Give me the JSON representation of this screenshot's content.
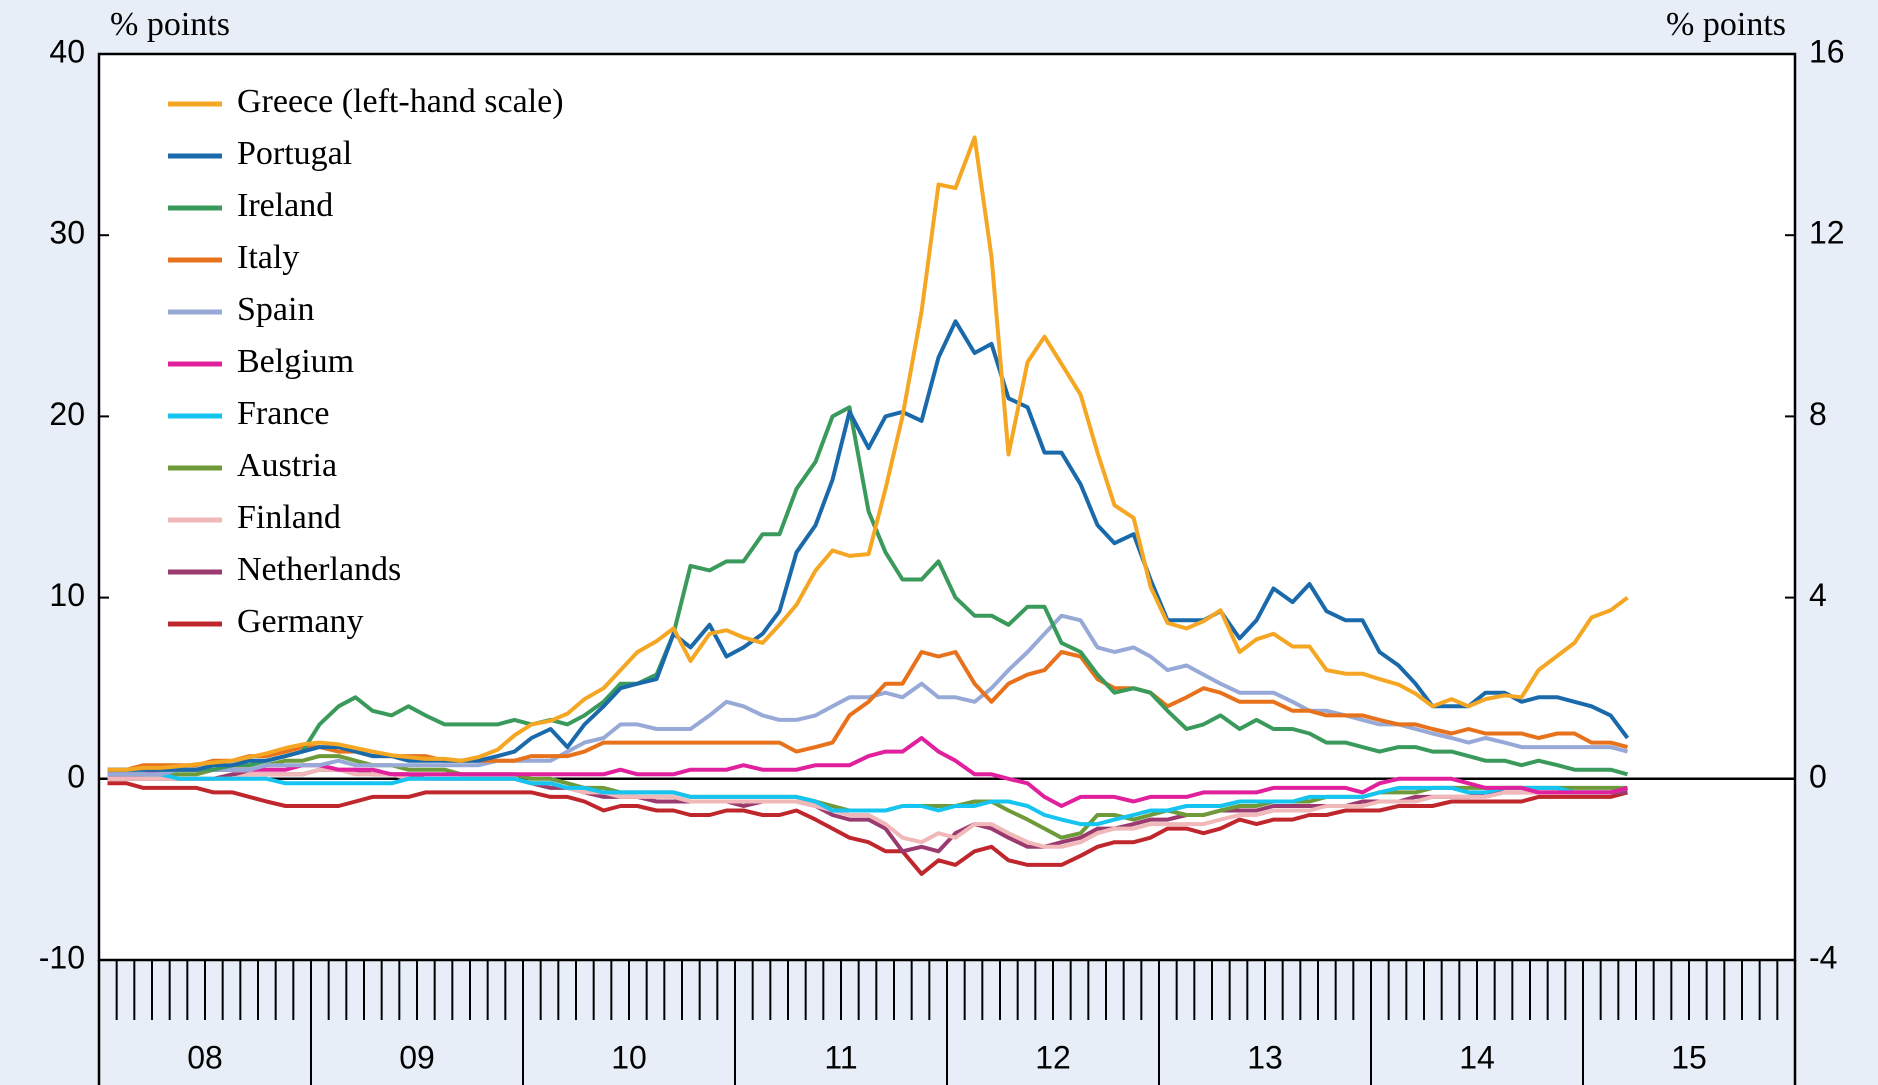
{
  "chart_data": {
    "type": "line",
    "ylabel": "% points",
    "y2label": "% points",
    "xlim": [
      2008,
      2016
    ],
    "xticks": [
      {
        "value": 2008.5,
        "label": "08"
      },
      {
        "value": 2009.5,
        "label": "09"
      },
      {
        "value": 2010.5,
        "label": "10"
      },
      {
        "value": 2011.5,
        "label": "11"
      },
      {
        "value": 2012.5,
        "label": "12"
      },
      {
        "value": 2013.5,
        "label": "13"
      },
      {
        "value": 2014.5,
        "label": "14"
      },
      {
        "value": 2015.5,
        "label": "15"
      }
    ],
    "ylim": [
      -10,
      40
    ],
    "yticks": [
      -10,
      0,
      10,
      20,
      30,
      40
    ],
    "y2lim": [
      -4,
      16
    ],
    "y2ticks": [
      -4,
      0,
      4,
      8,
      12,
      16
    ],
    "legend": "upper left",
    "grid": false,
    "x": [
      2008.04,
      2008.13,
      2008.21,
      2008.29,
      2008.38,
      2008.46,
      2008.54,
      2008.63,
      2008.71,
      2008.79,
      2008.88,
      2008.96,
      2009.04,
      2009.13,
      2009.21,
      2009.29,
      2009.38,
      2009.46,
      2009.54,
      2009.63,
      2009.71,
      2009.79,
      2009.88,
      2009.96,
      2010.04,
      2010.13,
      2010.21,
      2010.29,
      2010.38,
      2010.46,
      2010.54,
      2010.63,
      2010.71,
      2010.79,
      2010.88,
      2010.96,
      2011.04,
      2011.13,
      2011.21,
      2011.29,
      2011.38,
      2011.46,
      2011.54,
      2011.63,
      2011.71,
      2011.79,
      2011.88,
      2011.96,
      2012.04,
      2012.13,
      2012.21,
      2012.29,
      2012.38,
      2012.46,
      2012.54,
      2012.63,
      2012.71,
      2012.79,
      2012.88,
      2012.96,
      2013.04,
      2013.13,
      2013.21,
      2013.29,
      2013.38,
      2013.46,
      2013.54,
      2013.63,
      2013.71,
      2013.79,
      2013.88,
      2013.96,
      2014.04,
      2014.13,
      2014.21,
      2014.29,
      2014.38,
      2014.46,
      2014.54,
      2014.63,
      2014.71,
      2014.79,
      2014.88,
      2014.96,
      2015.04,
      2015.13,
      2015.21
    ],
    "series": [
      {
        "name": "Greece (left-hand scale)",
        "color": "#f5a623",
        "axis": "y",
        "values": [
          0.5,
          0.5,
          0.6,
          0.6,
          0.7,
          0.8,
          0.9,
          1.0,
          1.2,
          1.4,
          1.7,
          1.9,
          2.0,
          1.9,
          1.7,
          1.5,
          1.3,
          1.2,
          1.1,
          1.1,
          1.0,
          1.2,
          1.6,
          2.4,
          3.0,
          3.2,
          3.6,
          4.4,
          5.0,
          6.0,
          7.0,
          7.6,
          8.3,
          6.5,
          8.0,
          8.2,
          7.8,
          7.5,
          8.5,
          9.6,
          11.5,
          12.6,
          12.3,
          12.4,
          16,
          20,
          25.8,
          32.8,
          32.6,
          35.4,
          28.8,
          17.9,
          23,
          24.4,
          22.9,
          21.2,
          18,
          15.1,
          14.4,
          10.6,
          8.6,
          8.3,
          8.7,
          9.3,
          7.0,
          7.7,
          8.0,
          7.3,
          7.3,
          6.0,
          5.8,
          5.8,
          5.5,
          5.2,
          4.7,
          4.0,
          4.4,
          4.0,
          4.4,
          4.6,
          4.5,
          6.0,
          6.8,
          7.5,
          8.9,
          9.3,
          10.0
        ]
      },
      {
        "name": "Portugal",
        "color": "#1a6aab",
        "axis": "y2",
        "values": [
          0.2,
          0.2,
          0.2,
          0.2,
          0.2,
          0.2,
          0.3,
          0.3,
          0.4,
          0.4,
          0.5,
          0.6,
          0.7,
          0.7,
          0.6,
          0.5,
          0.5,
          0.4,
          0.4,
          0.4,
          0.4,
          0.4,
          0.5,
          0.6,
          0.9,
          1.1,
          0.7,
          1.2,
          1.6,
          2.0,
          2.1,
          2.2,
          3.2,
          2.9,
          3.4,
          2.7,
          2.9,
          3.2,
          3.7,
          5.0,
          5.6,
          6.6,
          8.1,
          7.3,
          8.0,
          8.1,
          7.9,
          9.3,
          10.1,
          9.4,
          9.6,
          8.4,
          8.2,
          7.2,
          7.2,
          6.5,
          5.6,
          5.2,
          5.4,
          4.4,
          3.5,
          3.5,
          3.5,
          3.7,
          3.1,
          3.5,
          4.2,
          3.9,
          4.3,
          3.7,
          3.5,
          3.5,
          2.8,
          2.5,
          2.1,
          1.6,
          1.6,
          1.6,
          1.9,
          1.9,
          1.7,
          1.8,
          1.8,
          1.7,
          1.6,
          1.4,
          0.9
        ]
      },
      {
        "name": "Ireland",
        "color": "#3a9a5c",
        "axis": "y2",
        "values": [
          0.2,
          0.2,
          0.2,
          0.2,
          0.2,
          0.2,
          0.2,
          0.3,
          0.3,
          0.4,
          0.5,
          0.6,
          1.2,
          1.6,
          1.8,
          1.5,
          1.4,
          1.6,
          1.4,
          1.2,
          1.2,
          1.2,
          1.2,
          1.3,
          1.2,
          1.3,
          1.2,
          1.4,
          1.7,
          2.1,
          2.1,
          2.3,
          3.2,
          4.7,
          4.6,
          4.8,
          4.8,
          5.4,
          5.4,
          6.4,
          7.0,
          8.0,
          8.2,
          5.9,
          5.0,
          4.4,
          4.4,
          4.8,
          4.0,
          3.6,
          3.6,
          3.4,
          3.8,
          3.8,
          3.0,
          2.8,
          2.3,
          1.9,
          2.0,
          1.9,
          1.5,
          1.1,
          1.2,
          1.4,
          1.1,
          1.3,
          1.1,
          1.1,
          1.0,
          0.8,
          0.8,
          0.7,
          0.6,
          0.7,
          0.7,
          0.6,
          0.6,
          0.5,
          0.4,
          0.4,
          0.3,
          0.4,
          0.3,
          0.2,
          0.2,
          0.2,
          0.1
        ]
      },
      {
        "name": "Italy",
        "color": "#e8721c",
        "axis": "y2",
        "values": [
          0.2,
          0.2,
          0.3,
          0.3,
          0.3,
          0.3,
          0.4,
          0.4,
          0.5,
          0.5,
          0.6,
          0.7,
          0.7,
          0.6,
          0.6,
          0.5,
          0.5,
          0.5,
          0.5,
          0.4,
          0.4,
          0.4,
          0.4,
          0.4,
          0.5,
          0.5,
          0.5,
          0.6,
          0.8,
          0.8,
          0.8,
          0.8,
          0.8,
          0.8,
          0.8,
          0.8,
          0.8,
          0.8,
          0.8,
          0.6,
          0.7,
          0.8,
          1.4,
          1.7,
          2.1,
          2.1,
          2.8,
          2.7,
          2.8,
          2.1,
          1.7,
          2.1,
          2.3,
          2.4,
          2.8,
          2.7,
          2.2,
          2.0,
          2.0,
          1.9,
          1.6,
          1.8,
          2.0,
          1.9,
          1.7,
          1.7,
          1.7,
          1.5,
          1.5,
          1.4,
          1.4,
          1.4,
          1.3,
          1.2,
          1.2,
          1.1,
          1.0,
          1.1,
          1.0,
          1.0,
          1.0,
          0.9,
          1.0,
          1.0,
          0.8,
          0.8,
          0.7
        ]
      },
      {
        "name": "Spain",
        "color": "#97a9d6",
        "axis": "y2",
        "values": [
          0.1,
          0.1,
          0.1,
          0.1,
          0.2,
          0.2,
          0.2,
          0.2,
          0.2,
          0.3,
          0.3,
          0.3,
          0.3,
          0.4,
          0.3,
          0.3,
          0.3,
          0.3,
          0.3,
          0.3,
          0.3,
          0.3,
          0.4,
          0.4,
          0.4,
          0.4,
          0.6,
          0.8,
          0.9,
          1.2,
          1.2,
          1.1,
          1.1,
          1.1,
          1.4,
          1.7,
          1.6,
          1.4,
          1.3,
          1.3,
          1.4,
          1.6,
          1.8,
          1.8,
          1.9,
          1.8,
          2.1,
          1.8,
          1.8,
          1.7,
          2.0,
          2.4,
          2.8,
          3.2,
          3.6,
          3.5,
          2.9,
          2.8,
          2.9,
          2.7,
          2.4,
          2.5,
          2.3,
          2.1,
          1.9,
          1.9,
          1.9,
          1.7,
          1.5,
          1.5,
          1.4,
          1.3,
          1.2,
          1.2,
          1.1,
          1.0,
          0.9,
          0.8,
          0.9,
          0.8,
          0.7,
          0.7,
          0.7,
          0.7,
          0.7,
          0.7,
          0.6
        ]
      },
      {
        "name": "Belgium",
        "color": "#e0209c",
        "axis": "y2",
        "values": [
          0.1,
          0.1,
          0.1,
          0.2,
          0.2,
          0.2,
          0.2,
          0.2,
          0.2,
          0.2,
          0.2,
          0.3,
          0.3,
          0.2,
          0.2,
          0.2,
          0.1,
          0.1,
          0.1,
          0.1,
          0.1,
          0.1,
          0.1,
          0.1,
          0.1,
          0.1,
          0.1,
          0.1,
          0.1,
          0.2,
          0.1,
          0.1,
          0.1,
          0.2,
          0.2,
          0.2,
          0.3,
          0.2,
          0.2,
          0.2,
          0.3,
          0.3,
          0.3,
          0.5,
          0.6,
          0.6,
          0.9,
          0.6,
          0.4,
          0.1,
          0.1,
          0.0,
          -0.1,
          -0.4,
          -0.6,
          -0.4,
          -0.4,
          -0.4,
          -0.5,
          -0.4,
          -0.4,
          -0.4,
          -0.3,
          -0.3,
          -0.3,
          -0.3,
          -0.2,
          -0.2,
          -0.2,
          -0.2,
          -0.2,
          -0.3,
          -0.1,
          0.0,
          0.0,
          0.0,
          0.0,
          -0.1,
          -0.2,
          -0.2,
          -0.2,
          -0.3,
          -0.3,
          -0.3,
          -0.3,
          -0.3,
          -0.2
        ]
      },
      {
        "name": "France",
        "color": "#15c4f0",
        "axis": "y2",
        "values": [
          0.1,
          0.1,
          0.1,
          0.1,
          0.0,
          0.0,
          0.0,
          0.0,
          0.0,
          0.0,
          -0.1,
          -0.1,
          -0.1,
          -0.1,
          -0.1,
          -0.1,
          -0.1,
          0.0,
          0.0,
          0.0,
          0.0,
          0.0,
          0.0,
          0.0,
          -0.1,
          -0.1,
          -0.2,
          -0.2,
          -0.3,
          -0.3,
          -0.3,
          -0.3,
          -0.3,
          -0.4,
          -0.4,
          -0.4,
          -0.4,
          -0.4,
          -0.4,
          -0.4,
          -0.5,
          -0.7,
          -0.7,
          -0.7,
          -0.7,
          -0.6,
          -0.6,
          -0.7,
          -0.6,
          -0.6,
          -0.5,
          -0.5,
          -0.6,
          -0.8,
          -0.9,
          -1.0,
          -1.0,
          -0.9,
          -0.8,
          -0.7,
          -0.7,
          -0.6,
          -0.6,
          -0.6,
          -0.5,
          -0.5,
          -0.5,
          -0.5,
          -0.4,
          -0.4,
          -0.4,
          -0.4,
          -0.3,
          -0.2,
          -0.2,
          -0.2,
          -0.2,
          -0.3,
          -0.3,
          -0.2,
          -0.2,
          -0.2,
          -0.2,
          -0.3,
          -0.3,
          -0.3,
          -0.2
        ]
      },
      {
        "name": "Austria",
        "color": "#6e9a3a",
        "axis": "y2",
        "values": [
          0.1,
          0.1,
          0.1,
          0.1,
          0.1,
          0.1,
          0.2,
          0.2,
          0.2,
          0.3,
          0.4,
          0.4,
          0.5,
          0.5,
          0.4,
          0.3,
          0.3,
          0.2,
          0.2,
          0.2,
          0.1,
          0.1,
          0.1,
          0.1,
          0.0,
          0.0,
          -0.1,
          -0.2,
          -0.2,
          -0.3,
          -0.3,
          -0.3,
          -0.3,
          -0.4,
          -0.4,
          -0.4,
          -0.4,
          -0.4,
          -0.4,
          -0.4,
          -0.5,
          -0.6,
          -0.7,
          -0.7,
          -0.7,
          -0.6,
          -0.6,
          -0.6,
          -0.6,
          -0.5,
          -0.5,
          -0.7,
          -0.9,
          -1.1,
          -1.3,
          -1.2,
          -0.8,
          -0.8,
          -0.9,
          -0.8,
          -0.7,
          -0.8,
          -0.8,
          -0.7,
          -0.6,
          -0.6,
          -0.5,
          -0.5,
          -0.5,
          -0.4,
          -0.4,
          -0.4,
          -0.3,
          -0.3,
          -0.3,
          -0.2,
          -0.2,
          -0.2,
          -0.2,
          -0.2,
          -0.2,
          -0.2,
          -0.2,
          -0.2,
          -0.2,
          -0.2,
          -0.2
        ]
      },
      {
        "name": "Finland",
        "color": "#f0b8b8",
        "axis": "y2",
        "values": [
          0.0,
          0.0,
          0.0,
          0.0,
          0.0,
          0.0,
          0.0,
          0.0,
          0.1,
          0.1,
          0.1,
          0.1,
          0.2,
          0.2,
          0.1,
          0.1,
          0.1,
          0.0,
          0.0,
          0.0,
          0.0,
          0.0,
          0.0,
          0.0,
          -0.1,
          -0.1,
          -0.2,
          -0.3,
          -0.3,
          -0.4,
          -0.4,
          -0.4,
          -0.4,
          -0.5,
          -0.5,
          -0.5,
          -0.5,
          -0.5,
          -0.5,
          -0.5,
          -0.6,
          -0.7,
          -0.8,
          -0.8,
          -1.0,
          -1.3,
          -1.4,
          -1.2,
          -1.3,
          -1.0,
          -1.0,
          -1.2,
          -1.4,
          -1.5,
          -1.5,
          -1.4,
          -1.2,
          -1.1,
          -1.1,
          -1.0,
          -1.0,
          -1.0,
          -1.0,
          -0.9,
          -0.8,
          -0.8,
          -0.7,
          -0.7,
          -0.7,
          -0.6,
          -0.6,
          -0.6,
          -0.5,
          -0.5,
          -0.5,
          -0.4,
          -0.4,
          -0.4,
          -0.4,
          -0.3,
          -0.3,
          -0.3,
          -0.3,
          -0.3,
          -0.3,
          -0.3,
          -0.2
        ]
      },
      {
        "name": "Netherlands",
        "color": "#9a3a6e",
        "axis": "y2",
        "values": [
          0.0,
          0.0,
          0.0,
          0.0,
          0.0,
          0.0,
          0.0,
          0.1,
          0.1,
          0.1,
          0.1,
          0.1,
          0.2,
          0.2,
          0.2,
          0.1,
          0.1,
          0.1,
          0.0,
          0.0,
          0.0,
          0.0,
          0.0,
          0.0,
          -0.1,
          -0.2,
          -0.2,
          -0.3,
          -0.4,
          -0.4,
          -0.4,
          -0.5,
          -0.5,
          -0.5,
          -0.5,
          -0.5,
          -0.6,
          -0.5,
          -0.5,
          -0.5,
          -0.6,
          -0.8,
          -0.9,
          -0.9,
          -1.1,
          -1.6,
          -1.5,
          -1.6,
          -1.2,
          -1.0,
          -1.1,
          -1.3,
          -1.5,
          -1.5,
          -1.4,
          -1.3,
          -1.1,
          -1.1,
          -1.0,
          -0.9,
          -0.9,
          -0.8,
          -0.8,
          -0.7,
          -0.7,
          -0.7,
          -0.6,
          -0.6,
          -0.6,
          -0.6,
          -0.6,
          -0.5,
          -0.5,
          -0.5,
          -0.4,
          -0.4,
          -0.4,
          -0.4,
          -0.3,
          -0.3,
          -0.3,
          -0.3,
          -0.3,
          -0.3,
          -0.3,
          -0.3,
          -0.3
        ]
      },
      {
        "name": "Germany",
        "color": "#c0272d",
        "axis": "y2",
        "values": [
          -0.1,
          -0.1,
          -0.2,
          -0.2,
          -0.2,
          -0.2,
          -0.3,
          -0.3,
          -0.4,
          -0.5,
          -0.6,
          -0.6,
          -0.6,
          -0.6,
          -0.5,
          -0.4,
          -0.4,
          -0.4,
          -0.3,
          -0.3,
          -0.3,
          -0.3,
          -0.3,
          -0.3,
          -0.3,
          -0.4,
          -0.4,
          -0.5,
          -0.7,
          -0.6,
          -0.6,
          -0.7,
          -0.7,
          -0.8,
          -0.8,
          -0.7,
          -0.7,
          -0.8,
          -0.8,
          -0.7,
          -0.9,
          -1.1,
          -1.3,
          -1.4,
          -1.6,
          -1.6,
          -2.1,
          -1.8,
          -1.9,
          -1.6,
          -1.5,
          -1.8,
          -1.9,
          -1.9,
          -1.9,
          -1.7,
          -1.5,
          -1.4,
          -1.4,
          -1.3,
          -1.1,
          -1.1,
          -1.2,
          -1.1,
          -0.9,
          -1.0,
          -0.9,
          -0.9,
          -0.8,
          -0.8,
          -0.7,
          -0.7,
          -0.7,
          -0.6,
          -0.6,
          -0.6,
          -0.5,
          -0.5,
          -0.5,
          -0.5,
          -0.5,
          -0.4,
          -0.4,
          -0.4,
          -0.4,
          -0.4,
          -0.3
        ]
      }
    ]
  }
}
